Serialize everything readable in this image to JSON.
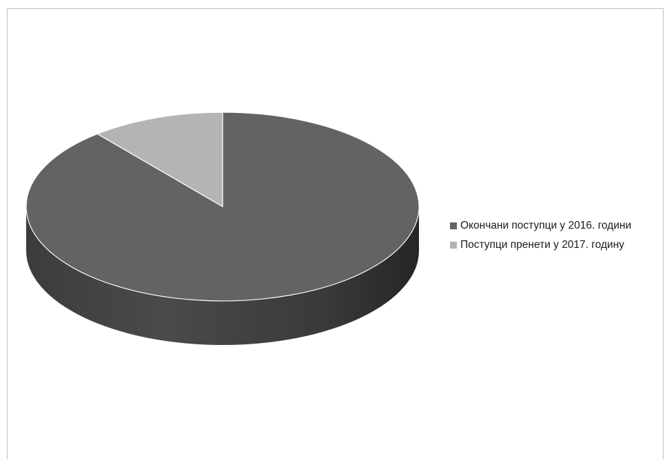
{
  "chart_data": {
    "type": "pie",
    "style": "3d",
    "title": "",
    "series": [
      {
        "name": "Окончани поступци у 2016. години",
        "value": 89,
        "color": "#636363"
      },
      {
        "name": "Поступци пренети у 2017. годину",
        "value": 11,
        "color": "#b4b4b4"
      }
    ],
    "legend_position": "right"
  }
}
